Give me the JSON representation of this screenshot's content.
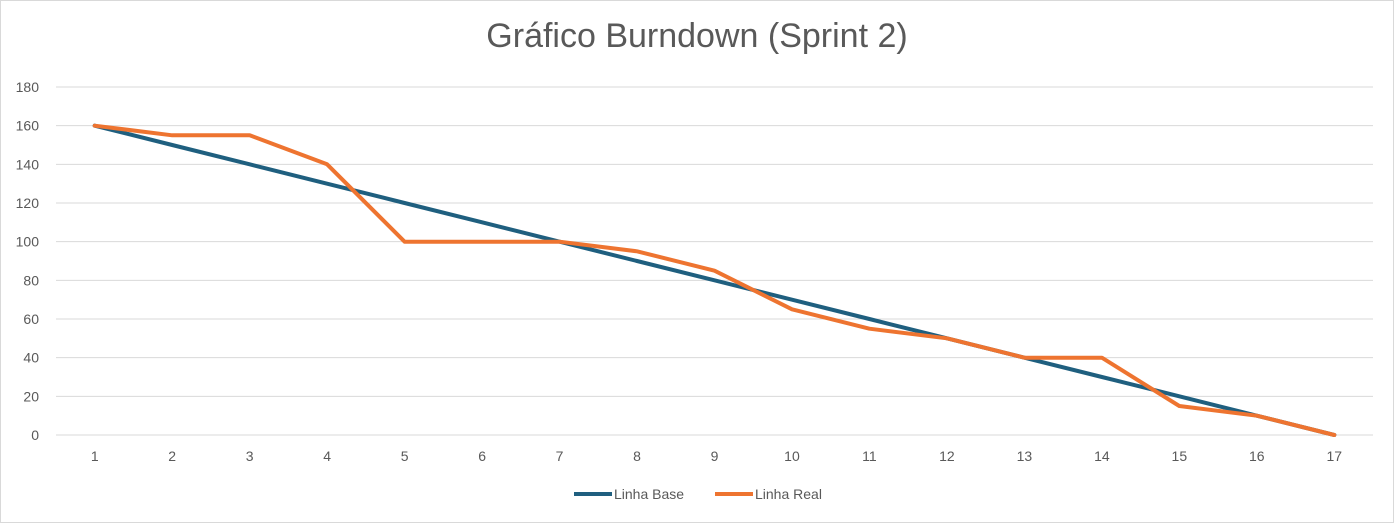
{
  "chart_data": {
    "type": "line",
    "title": "Gráfico Burndown (Sprint 2)",
    "xlabel": "",
    "ylabel": "",
    "x": [
      1,
      2,
      3,
      4,
      5,
      6,
      7,
      8,
      9,
      10,
      11,
      12,
      13,
      14,
      15,
      16,
      17
    ],
    "ylim": [
      0,
      180
    ],
    "yticks": [
      0,
      20,
      40,
      60,
      80,
      100,
      120,
      140,
      160,
      180
    ],
    "grid": true,
    "legend_position": "bottom",
    "series": [
      {
        "name": "Linha Base",
        "color": "#1f5f7f",
        "values": [
          160,
          150,
          140,
          130,
          120,
          110,
          100,
          90,
          80,
          70,
          60,
          50,
          40,
          30,
          20,
          10,
          0
        ]
      },
      {
        "name": "Linha Real",
        "color": "#ee7430",
        "values": [
          160,
          155,
          155,
          140,
          100,
          100,
          100,
          95,
          85,
          65,
          55,
          50,
          40,
          40,
          15,
          10,
          0
        ]
      }
    ]
  }
}
